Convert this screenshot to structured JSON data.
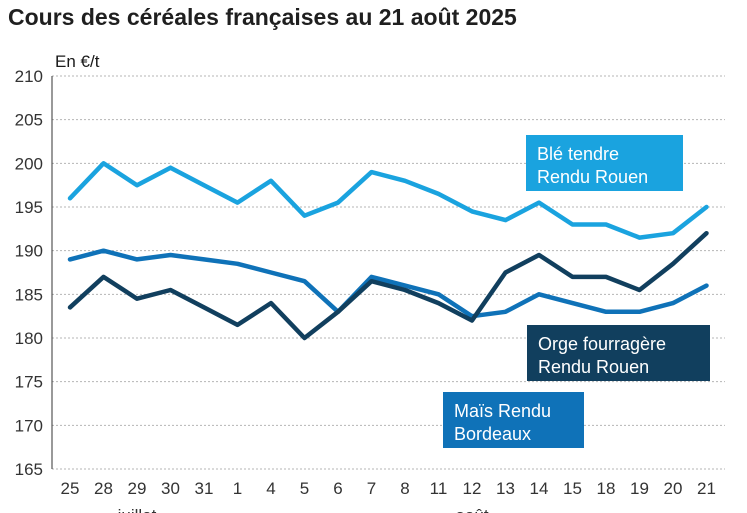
{
  "chart_data": {
    "type": "line",
    "title": "Cours des céréales françaises au 21 août 2025",
    "ylabel": "En €/t",
    "xlabel": "",
    "ylim": [
      165,
      210
    ],
    "yticks": [
      165,
      170,
      175,
      180,
      185,
      190,
      195,
      200,
      205,
      210
    ],
    "grid": true,
    "categories": [
      "25",
      "28",
      "29",
      "30",
      "31",
      "1",
      "4",
      "5",
      "6",
      "7",
      "8",
      "11",
      "12",
      "13",
      "14",
      "15",
      "18",
      "19",
      "20",
      "21"
    ],
    "month_labels": [
      {
        "label": "juillet",
        "category_index": 2
      },
      {
        "label": "août",
        "category_index": 12
      }
    ],
    "series": [
      {
        "name": "Blé tendre Rendu Rouen",
        "label_lines": [
          "Blé tendre",
          "Rendu Rouen"
        ],
        "color": "#1aa3df",
        "values": [
          196,
          200,
          197.5,
          199.5,
          197.5,
          195.5,
          198,
          194,
          195.5,
          199,
          198,
          196.5,
          194.5,
          193.5,
          195.5,
          193,
          193,
          191.5,
          192,
          195
        ]
      },
      {
        "name": "Maïs Rendu Bordeaux",
        "label_lines": [
          "Maïs Rendu",
          "Bordeaux"
        ],
        "color": "#0f72b8",
        "values": [
          189,
          190,
          189,
          189.5,
          189,
          188.5,
          187.5,
          186.5,
          183,
          187,
          186,
          185,
          182.5,
          183,
          185,
          184,
          183,
          183,
          184,
          186
        ]
      },
      {
        "name": "Orge fourragère Rendu Rouen",
        "label_lines": [
          "Orge fourragère",
          "Rendu Rouen"
        ],
        "color": "#113f5e",
        "values": [
          183.5,
          187,
          184.5,
          185.5,
          183.5,
          181.5,
          184,
          180,
          183,
          186.5,
          185.5,
          184,
          182,
          187.5,
          189.5,
          187,
          187,
          185.5,
          188.5,
          192
        ]
      }
    ]
  }
}
